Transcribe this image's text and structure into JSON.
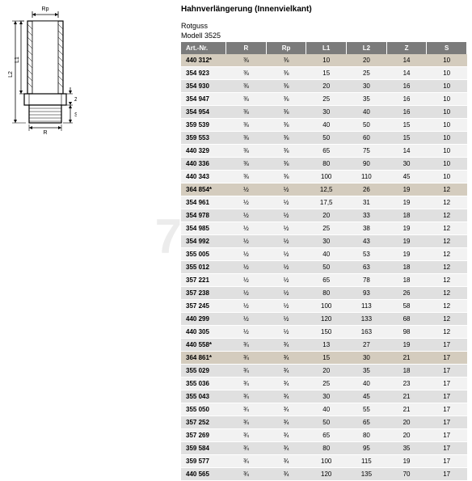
{
  "header": {
    "title": "Hahnverlängerung (Innenvielkant)",
    "material": "Rotguss",
    "model": "Modell 3525"
  },
  "diagram": {
    "labels": {
      "Rp": "Rp",
      "L1": "L1",
      "L2": "L2",
      "Z": "Z",
      "S": "S",
      "R": "R"
    },
    "stroke": "#000000",
    "fill_body": "#f8f8f8",
    "fill_hatch": "#e8e8e8"
  },
  "watermark": "745.ru",
  "table": {
    "columns": [
      "Art.-Nr.",
      "R",
      "Rp",
      "L1",
      "L2",
      "Z",
      "S"
    ],
    "col_widths": [
      "56px",
      "50px",
      "50px",
      "50px",
      "50px",
      "50px",
      "50px"
    ],
    "header_bg": "#7b7b7b",
    "header_fg": "#ffffff",
    "row_bg_odd": "#e0e0e0",
    "row_bg_even": "#f2f2f2",
    "row_bg_highlight": "#d4ccbe",
    "rows": [
      {
        "hl": true,
        "cells": [
          "440 312*",
          "⅜",
          "⅜",
          "10",
          "20",
          "14",
          "10"
        ]
      },
      {
        "cells": [
          "354 923",
          "⅜",
          "⅜",
          "15",
          "25",
          "14",
          "10"
        ]
      },
      {
        "cells": [
          "354 930",
          "⅜",
          "⅜",
          "20",
          "30",
          "16",
          "10"
        ]
      },
      {
        "cells": [
          "354 947",
          "⅜",
          "⅜",
          "25",
          "35",
          "16",
          "10"
        ]
      },
      {
        "cells": [
          "354 954",
          "⅜",
          "⅜",
          "30",
          "40",
          "16",
          "10"
        ]
      },
      {
        "cells": [
          "359 539",
          "⅜",
          "⅜",
          "40",
          "50",
          "15",
          "10"
        ]
      },
      {
        "cells": [
          "359 553",
          "⅜",
          "⅜",
          "50",
          "60",
          "15",
          "10"
        ]
      },
      {
        "cells": [
          "440 329",
          "⅜",
          "⅜",
          "65",
          "75",
          "14",
          "10"
        ]
      },
      {
        "cells": [
          "440 336",
          "⅜",
          "⅜",
          "80",
          "90",
          "30",
          "10"
        ]
      },
      {
        "cells": [
          "440 343",
          "⅜",
          "⅜",
          "100",
          "110",
          "45",
          "10"
        ]
      },
      {
        "hl": true,
        "cells": [
          "364 854*",
          "½",
          "½",
          "12,5",
          "26",
          "19",
          "12"
        ]
      },
      {
        "cells": [
          "354 961",
          "½",
          "½",
          "17,5",
          "31",
          "19",
          "12"
        ]
      },
      {
        "cells": [
          "354 978",
          "½",
          "½",
          "20",
          "33",
          "18",
          "12"
        ]
      },
      {
        "cells": [
          "354 985",
          "½",
          "½",
          "25",
          "38",
          "19",
          "12"
        ]
      },
      {
        "cells": [
          "354 992",
          "½",
          "½",
          "30",
          "43",
          "19",
          "12"
        ]
      },
      {
        "cells": [
          "355 005",
          "½",
          "½",
          "40",
          "53",
          "19",
          "12"
        ]
      },
      {
        "cells": [
          "355 012",
          "½",
          "½",
          "50",
          "63",
          "18",
          "12"
        ]
      },
      {
        "cells": [
          "357 221",
          "½",
          "½",
          "65",
          "78",
          "18",
          "12"
        ]
      },
      {
        "cells": [
          "357 238",
          "½",
          "½",
          "80",
          "93",
          "26",
          "12"
        ]
      },
      {
        "cells": [
          "357 245",
          "½",
          "½",
          "100",
          "113",
          "58",
          "12"
        ]
      },
      {
        "cells": [
          "440 299",
          "½",
          "½",
          "120",
          "133",
          "68",
          "12"
        ]
      },
      {
        "cells": [
          "440 305",
          "½",
          "½",
          "150",
          "163",
          "98",
          "12"
        ]
      },
      {
        "cells": [
          "440 558*",
          "¾",
          "¾",
          "13",
          "27",
          "19",
          "17"
        ]
      },
      {
        "hl": true,
        "cells": [
          "364 861*",
          "¾",
          "¾",
          "15",
          "30",
          "21",
          "17"
        ]
      },
      {
        "cells": [
          "355 029",
          "¾",
          "¾",
          "20",
          "35",
          "18",
          "17"
        ]
      },
      {
        "cells": [
          "355 036",
          "¾",
          "¾",
          "25",
          "40",
          "23",
          "17"
        ]
      },
      {
        "cells": [
          "355 043",
          "¾",
          "¾",
          "30",
          "45",
          "21",
          "17"
        ]
      },
      {
        "cells": [
          "355 050",
          "¾",
          "¾",
          "40",
          "55",
          "21",
          "17"
        ]
      },
      {
        "cells": [
          "357 252",
          "¾",
          "¾",
          "50",
          "65",
          "20",
          "17"
        ]
      },
      {
        "cells": [
          "357 269",
          "¾",
          "¾",
          "65",
          "80",
          "20",
          "17"
        ]
      },
      {
        "cells": [
          "359 584",
          "¾",
          "¾",
          "80",
          "95",
          "35",
          "17"
        ]
      },
      {
        "cells": [
          "359 577",
          "¾",
          "¾",
          "100",
          "115",
          "19",
          "17"
        ]
      },
      {
        "cells": [
          "440 565",
          "¾",
          "¾",
          "120",
          "135",
          "70",
          "17"
        ]
      }
    ]
  }
}
